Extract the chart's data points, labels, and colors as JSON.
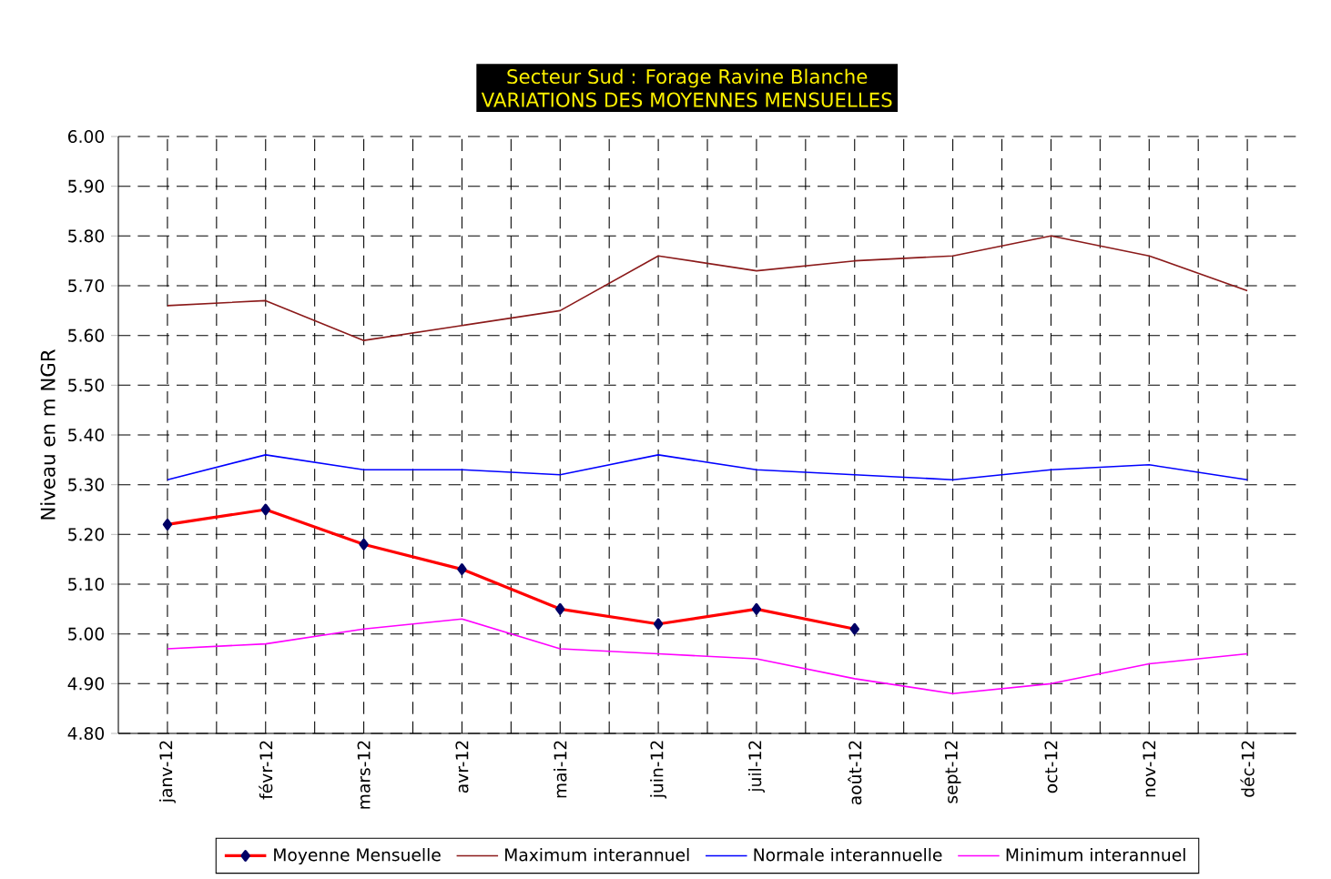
{
  "chart_data": {
    "type": "line",
    "title": "Secteur Sud : Forage Ravine Blanche",
    "subtitle": "VARIATIONS DES MOYENNES MENSUELLES",
    "ylabel": "Niveau en m NGR",
    "categories": [
      "janv-12",
      "févr-12",
      "mars-12",
      "avr-12",
      "mai-12",
      "juin-12",
      "juil-12",
      "août-12",
      "sept-12",
      "oct-12",
      "nov-12",
      "déc-12"
    ],
    "series": [
      {
        "name": "Moyenne Mensuelle",
        "color": "#ff0000",
        "marker": "diamond",
        "values": [
          5.22,
          5.25,
          5.18,
          5.13,
          5.05,
          5.02,
          5.05,
          5.01,
          null,
          null,
          null,
          null
        ]
      },
      {
        "name": "Maximum interannuel",
        "color": "#8b1a1a",
        "values": [
          5.66,
          5.67,
          5.59,
          5.62,
          5.65,
          5.76,
          5.73,
          5.75,
          5.76,
          5.8,
          5.76,
          5.69
        ]
      },
      {
        "name": "Normale interannuelle",
        "color": "#0000ff",
        "values": [
          5.31,
          5.36,
          5.33,
          5.33,
          5.32,
          5.36,
          5.33,
          5.32,
          5.31,
          5.33,
          5.34,
          5.31
        ]
      },
      {
        "name": "Minimum interannuel",
        "color": "#ff00ff",
        "values": [
          4.97,
          4.98,
          5.01,
          5.03,
          4.97,
          4.96,
          4.95,
          4.91,
          4.88,
          4.9,
          4.94,
          4.96
        ]
      }
    ],
    "ylim": [
      4.8,
      6.0
    ],
    "yticks": [
      {
        "value": 4.8,
        "label": "4.80"
      },
      {
        "value": 4.9,
        "label": "4.90"
      },
      {
        "value": 5.0,
        "label": "5.00"
      },
      {
        "value": 5.1,
        "label": "5.10"
      },
      {
        "value": 5.2,
        "label": "5.20"
      },
      {
        "value": 5.3,
        "label": "5.30"
      },
      {
        "value": 5.4,
        "label": "5.40"
      },
      {
        "value": 5.5,
        "label": "5.50"
      },
      {
        "value": 5.6,
        "label": "5.60"
      },
      {
        "value": 5.7,
        "label": "5.70"
      },
      {
        "value": 5.8,
        "label": "5.80"
      },
      {
        "value": 5.9,
        "label": "5.90"
      },
      {
        "value": 6.0,
        "label": "6.00"
      }
    ],
    "grid": true,
    "legend": "bottom"
  }
}
